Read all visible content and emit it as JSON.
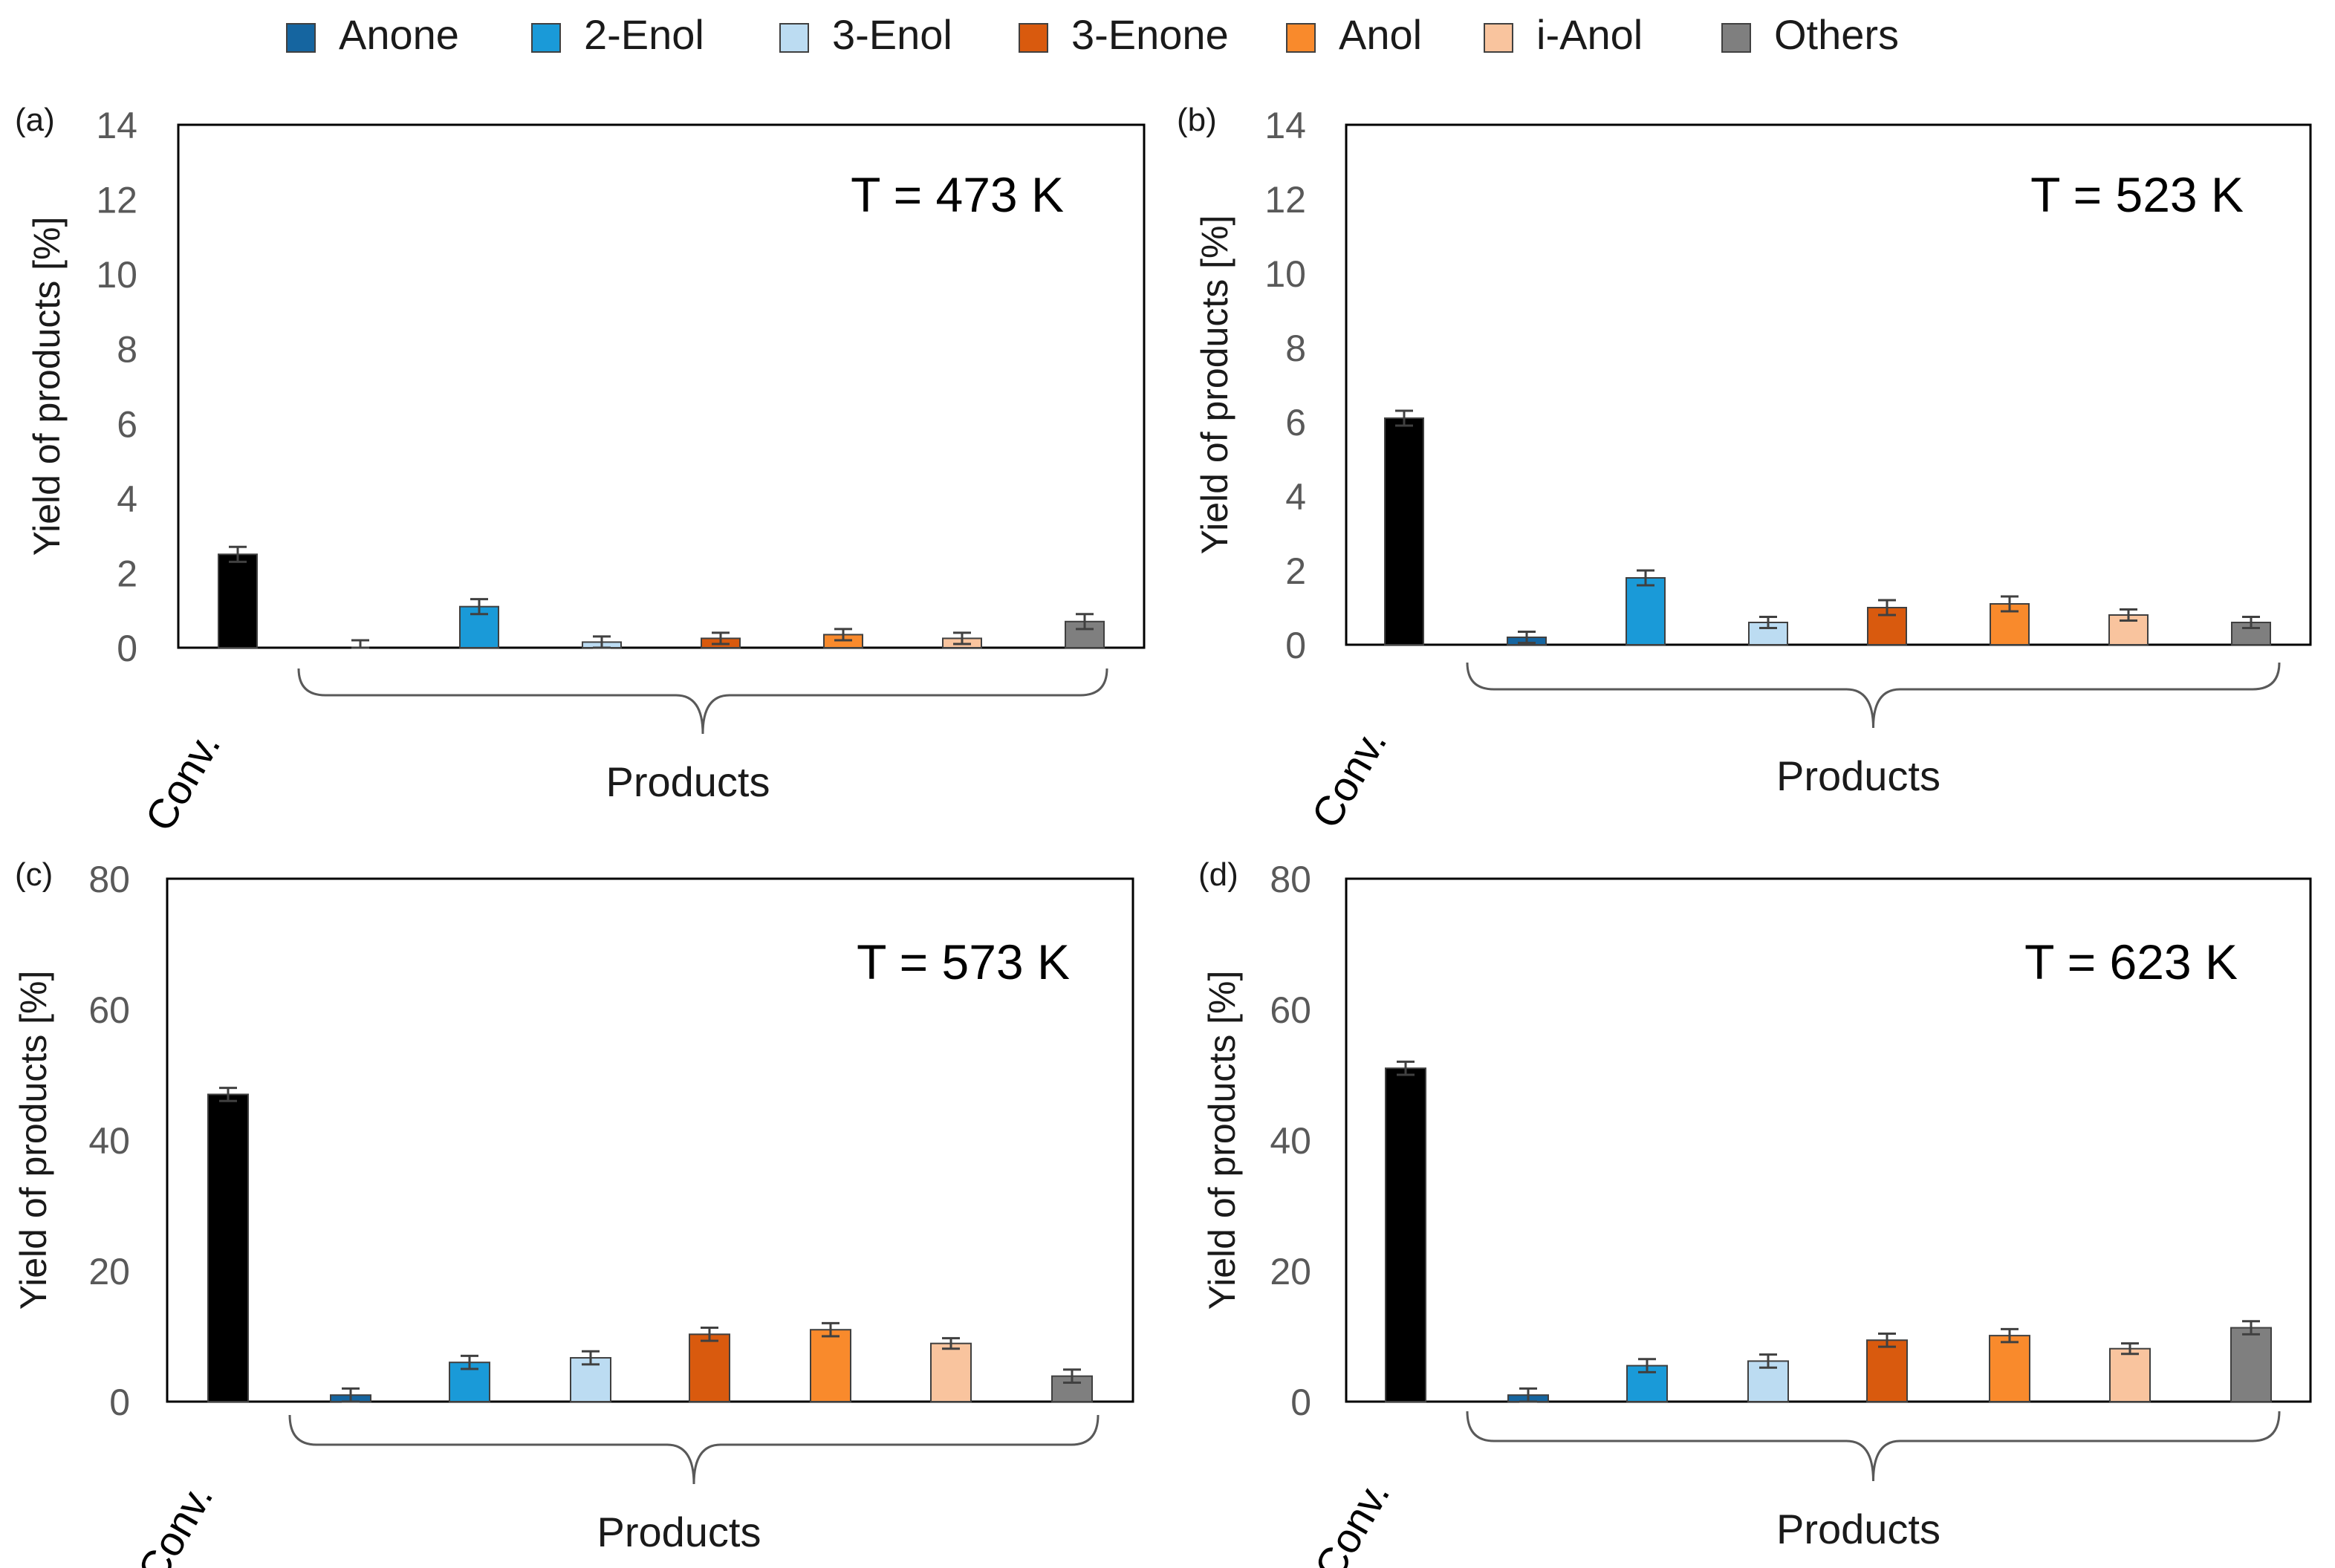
{
  "legend": [
    {
      "name": "Anone",
      "color": "#1565a0"
    },
    {
      "name": "2-Enol",
      "color": "#1a9ad8"
    },
    {
      "name": "3-Enol",
      "color": "#bcdcf2"
    },
    {
      "name": "3-Enone",
      "color": "#d95a0e"
    },
    {
      "name": "Anol",
      "color": "#f98a2c"
    },
    {
      "name": "i-Anol",
      "color": "#f9c49e"
    },
    {
      "name": "Others",
      "color": "#7f7f7f"
    }
  ],
  "conv_color": "#000000",
  "chart_data": [
    {
      "type": "bar",
      "panel": "(a)",
      "annotation": "T = 473 K",
      "ylabel": "Yield of products [%]",
      "xgroup_label": "Products",
      "ylim": [
        0,
        14
      ],
      "yticks": [
        0,
        2,
        4,
        6,
        8,
        10,
        12,
        14
      ],
      "categories": [
        "Conv.",
        "Anone",
        "2-Enol",
        "3-Enol",
        "3-Enone",
        "Anol",
        "i-Anol",
        "Others"
      ],
      "values": [
        2.5,
        0.0,
        1.1,
        0.15,
        0.25,
        0.35,
        0.25,
        0.7
      ],
      "errors": [
        0.2,
        0.2,
        0.2,
        0.15,
        0.15,
        0.15,
        0.15,
        0.2
      ]
    },
    {
      "type": "bar",
      "panel": "(b)",
      "annotation": "T = 523 K",
      "ylabel": "Yield of products [%]",
      "xgroup_label": "Products",
      "ylim": [
        0,
        14
      ],
      "yticks": [
        0,
        2,
        4,
        6,
        8,
        10,
        12,
        14
      ],
      "categories": [
        "Conv.",
        "Anone",
        "2-Enol",
        "3-Enol",
        "3-Enone",
        "Anol",
        "i-Anol",
        "Others"
      ],
      "values": [
        6.1,
        0.2,
        1.8,
        0.6,
        1.0,
        1.1,
        0.8,
        0.6
      ],
      "errors": [
        0.2,
        0.15,
        0.2,
        0.15,
        0.2,
        0.2,
        0.15,
        0.15
      ]
    },
    {
      "type": "bar",
      "panel": "(c)",
      "annotation": "T = 573 K",
      "ylabel": "Yield of products [%]",
      "xgroup_label": "Products",
      "ylim": [
        0,
        80
      ],
      "yticks": [
        0,
        20,
        40,
        60,
        80
      ],
      "categories": [
        "Conv.",
        "Anone",
        "2-Enol",
        "3-Enol",
        "3-Enone",
        "Anol",
        "i-Anol",
        "Others"
      ],
      "values": [
        47,
        1.0,
        6.0,
        6.7,
        10.3,
        11.0,
        8.9,
        3.9
      ],
      "errors": [
        1.0,
        1.0,
        1.0,
        1.0,
        1.0,
        1.0,
        0.8,
        1.0
      ]
    },
    {
      "type": "bar",
      "panel": "(d)",
      "annotation": "T = 623 K",
      "ylabel": "Yield of products [%]",
      "xgroup_label": "Products",
      "ylim": [
        0,
        80
      ],
      "yticks": [
        0,
        20,
        40,
        60,
        80
      ],
      "categories": [
        "Conv.",
        "Anone",
        "2-Enol",
        "3-Enol",
        "3-Enone",
        "Anol",
        "i-Anol",
        "Others"
      ],
      "values": [
        51,
        1.0,
        5.5,
        6.2,
        9.4,
        10.1,
        8.1,
        11.3
      ],
      "errors": [
        1.0,
        1.0,
        1.0,
        1.0,
        1.0,
        1.0,
        0.8,
        1.0
      ]
    }
  ]
}
